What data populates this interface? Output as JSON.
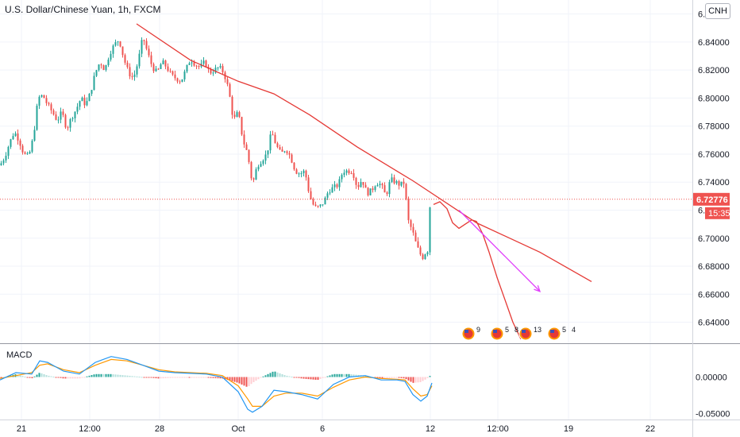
{
  "header": {
    "title": "U.S. Dollar/Chinese Yuan, 1h, FXCM",
    "symbol_badge": "CNH"
  },
  "macd": {
    "label": "MACD",
    "yticks": [
      "0.00000",
      "-0.05000"
    ]
  },
  "price_axis": {
    "ticks": [
      "6.86000",
      "6.84000",
      "6.82000",
      "6.80000",
      "6.78000",
      "6.76000",
      "6.74000",
      "6.72000",
      "6.70000",
      "6.68000",
      "6.66000",
      "6.64000"
    ],
    "last_price": "6.72776",
    "countdown": "15:35",
    "last_price_color": "#ef5350"
  },
  "time_axis": {
    "ticks": [
      "21",
      "12:00",
      "28",
      "Oct",
      "6",
      "12",
      "12:00",
      "19",
      "22"
    ]
  },
  "events": [
    {
      "icon": "us-flag-icon",
      "count": "9"
    },
    {
      "icon": "us-flag-icon",
      "count": "5"
    },
    {
      "icon": "us-flag-icon",
      "count": "8"
    },
    {
      "icon": "us-flag-icon",
      "count": "13"
    },
    {
      "icon": "us-flag-icon",
      "count": "5"
    },
    {
      "icon": "us-flag-icon",
      "count": "4"
    }
  ],
  "colors": {
    "up": "#26a69a",
    "down": "#ef5350",
    "trendline": "#e53935",
    "projection_arrow": "#e040fb",
    "macd_line": "#2196f3",
    "signal_line": "#ff9800"
  },
  "chart_data": {
    "type": "candlestick",
    "price_range": [
      6.625,
      6.87
    ],
    "macd_range": [
      -0.058,
      0.045
    ],
    "price_path": [
      [
        0,
        6.752
      ],
      [
        6,
        6.758
      ],
      [
        12,
        6.768
      ],
      [
        18,
        6.776
      ],
      [
        24,
        6.77
      ],
      [
        30,
        6.76
      ],
      [
        36,
        6.758
      ],
      [
        42,
        6.772
      ],
      [
        48,
        6.8
      ],
      [
        54,
        6.802
      ],
      [
        60,
        6.795
      ],
      [
        66,
        6.79
      ],
      [
        72,
        6.784
      ],
      [
        78,
        6.79
      ],
      [
        84,
        6.778
      ],
      [
        90,
        6.786
      ],
      [
        96,
        6.792
      ],
      [
        102,
        6.8
      ],
      [
        108,
        6.795
      ],
      [
        114,
        6.804
      ],
      [
        120,
        6.818
      ],
      [
        126,
        6.826
      ],
      [
        132,
        6.82
      ],
      [
        138,
        6.832
      ],
      [
        144,
        6.838
      ],
      [
        150,
        6.842
      ],
      [
        156,
        6.828
      ],
      [
        162,
        6.818
      ],
      [
        168,
        6.814
      ],
      [
        174,
        6.826
      ],
      [
        180,
        6.844
      ],
      [
        186,
        6.832
      ],
      [
        192,
        6.822
      ],
      [
        198,
        6.818
      ],
      [
        204,
        6.826
      ],
      [
        210,
        6.822
      ],
      [
        216,
        6.816
      ],
      [
        222,
        6.814
      ],
      [
        228,
        6.812
      ],
      [
        234,
        6.82
      ],
      [
        240,
        6.828
      ],
      [
        246,
        6.824
      ],
      [
        252,
        6.822
      ],
      [
        258,
        6.826
      ],
      [
        264,
        6.818
      ],
      [
        270,
        6.82
      ],
      [
        276,
        6.822
      ],
      [
        282,
        6.818
      ],
      [
        288,
        6.806
      ],
      [
        294,
        6.784
      ],
      [
        300,
        6.79
      ],
      [
        306,
        6.77
      ],
      [
        312,
        6.76
      ],
      [
        318,
        6.738
      ],
      [
        324,
        6.752
      ],
      [
        330,
        6.756
      ],
      [
        336,
        6.76
      ],
      [
        342,
        6.776
      ],
      [
        348,
        6.766
      ],
      [
        354,
        6.76
      ],
      [
        360,
        6.764
      ],
      [
        366,
        6.758
      ],
      [
        372,
        6.748
      ],
      [
        378,
        6.746
      ],
      [
        384,
        6.748
      ],
      [
        390,
        6.73
      ],
      [
        396,
        6.722
      ],
      [
        402,
        6.722
      ],
      [
        408,
        6.726
      ],
      [
        414,
        6.734
      ],
      [
        420,
        6.736
      ],
      [
        426,
        6.738
      ],
      [
        432,
        6.748
      ],
      [
        438,
        6.748
      ],
      [
        444,
        6.748
      ],
      [
        450,
        6.736
      ],
      [
        456,
        6.742
      ],
      [
        462,
        6.732
      ],
      [
        468,
        6.734
      ],
      [
        474,
        6.74
      ],
      [
        480,
        6.738
      ],
      [
        486,
        6.73
      ],
      [
        492,
        6.742
      ],
      [
        498,
        6.74
      ],
      [
        504,
        6.738
      ],
      [
        510,
        6.74
      ],
      [
        513,
        6.714
      ],
      [
        516,
        6.71
      ],
      [
        520,
        6.704
      ],
      [
        524,
        6.696
      ],
      [
        528,
        6.69
      ],
      [
        532,
        6.686
      ],
      [
        536,
        6.69
      ],
      [
        540,
        6.692
      ],
      [
        541,
        6.722
      ],
      [
        544,
        6.726
      ]
    ],
    "trendline": [
      [
        172,
        6.853
      ],
      [
        240,
        6.827
      ],
      [
        300,
        6.812
      ],
      [
        345,
        6.803
      ],
      [
        390,
        6.788
      ],
      [
        450,
        6.765
      ],
      [
        520,
        6.741
      ],
      [
        600,
        6.711
      ],
      [
        680,
        6.69
      ],
      [
        745,
        6.669
      ]
    ],
    "forecast_curve": [
      [
        546,
        6.724
      ],
      [
        554,
        6.726
      ],
      [
        563,
        6.721
      ],
      [
        570,
        6.711
      ],
      [
        578,
        6.707
      ],
      [
        586,
        6.71
      ],
      [
        594,
        6.713
      ],
      [
        600,
        6.712
      ],
      [
        608,
        6.703
      ],
      [
        616,
        6.69
      ],
      [
        626,
        6.672
      ],
      [
        636,
        6.656
      ],
      [
        646,
        6.64
      ],
      [
        656,
        6.628
      ]
    ],
    "projection_arrow": [
      [
        578,
        6.72
      ],
      [
        680,
        6.662
      ]
    ],
    "last_price_level": 6.72776,
    "macd_line": [
      [
        0,
        -0.004
      ],
      [
        20,
        0.006
      ],
      [
        40,
        0.004
      ],
      [
        50,
        0.022
      ],
      [
        60,
        0.02
      ],
      [
        80,
        0.008
      ],
      [
        100,
        0.004
      ],
      [
        120,
        0.02
      ],
      [
        140,
        0.028
      ],
      [
        160,
        0.024
      ],
      [
        180,
        0.016
      ],
      [
        200,
        0.008
      ],
      [
        220,
        0.006
      ],
      [
        240,
        0.005
      ],
      [
        260,
        0.004
      ],
      [
        280,
        0.0
      ],
      [
        300,
        -0.02
      ],
      [
        312,
        -0.044
      ],
      [
        318,
        -0.048
      ],
      [
        330,
        -0.04
      ],
      [
        345,
        -0.018
      ],
      [
        360,
        -0.02
      ],
      [
        380,
        -0.024
      ],
      [
        400,
        -0.03
      ],
      [
        420,
        -0.01
      ],
      [
        440,
        0.0
      ],
      [
        460,
        0.002
      ],
      [
        480,
        -0.004
      ],
      [
        500,
        -0.004
      ],
      [
        510,
        -0.006
      ],
      [
        520,
        -0.024
      ],
      [
        530,
        -0.033
      ],
      [
        538,
        -0.026
      ],
      [
        544,
        -0.008
      ]
    ],
    "signal_line": [
      [
        0,
        -0.002
      ],
      [
        20,
        0.002
      ],
      [
        40,
        0.006
      ],
      [
        50,
        0.016
      ],
      [
        60,
        0.018
      ],
      [
        80,
        0.01
      ],
      [
        100,
        0.006
      ],
      [
        120,
        0.016
      ],
      [
        140,
        0.024
      ],
      [
        160,
        0.022
      ],
      [
        180,
        0.016
      ],
      [
        200,
        0.01
      ],
      [
        220,
        0.007
      ],
      [
        240,
        0.006
      ],
      [
        260,
        0.005
      ],
      [
        280,
        0.002
      ],
      [
        300,
        -0.012
      ],
      [
        312,
        -0.03
      ],
      [
        318,
        -0.04
      ],
      [
        330,
        -0.04
      ],
      [
        345,
        -0.026
      ],
      [
        360,
        -0.022
      ],
      [
        380,
        -0.022
      ],
      [
        400,
        -0.026
      ],
      [
        420,
        -0.014
      ],
      [
        440,
        -0.004
      ],
      [
        460,
        0.0
      ],
      [
        480,
        -0.002
      ],
      [
        500,
        -0.003
      ],
      [
        510,
        -0.004
      ],
      [
        520,
        -0.016
      ],
      [
        530,
        -0.026
      ],
      [
        538,
        -0.024
      ],
      [
        544,
        -0.012
      ]
    ]
  }
}
